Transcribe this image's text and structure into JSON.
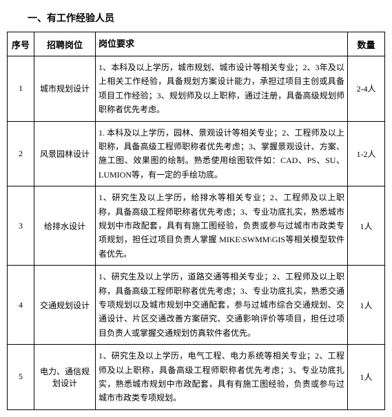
{
  "title": "一、有工作经验人员",
  "headers": {
    "index": "序号",
    "position": "招聘岗位",
    "requirement": "岗位要求",
    "quantity": "数量"
  },
  "rows": [
    {
      "index": "1",
      "position": "城市规划设计",
      "requirement": "1、本科及以上学历，城市规划、城市设计等相关专业；2、3年及以上相关工作经验，具备规划方案设计能力，承担过项目主创或具备项目工作经验；3、规划师及以上职称，通过注册，具备高级规划师职称者优先考虑。",
      "quantity": "2-4人"
    },
    {
      "index": "2",
      "position": "风景园林设计",
      "requirement": "1. 本科及以上学历，园林、景观设计等相关专业；2、工程师及以上职称，具备高级工程师职称者优先考虑；3、掌握景观设计、方案、施工图、效果图的绘制。熟悉使用绘图软件如：CAD、PS、SU、LUMION等，有一定的手绘功底。",
      "quantity": "1-2人"
    },
    {
      "index": "3",
      "position": "给排水设计",
      "requirement": "1、研究生及以上学历，给排水等相关专业；2、工程师及以上职称，具备高级工程师职称者优先考虑；3、专业功底扎实，熟悉城市规划中市政配套，具有有施工图经验，负责或参与过城市市政类专项规划，担任过项目负责人掌握 MIKE\\SWMM\\GIS等相关模型软件者优先。",
      "quantity": "1人"
    },
    {
      "index": "4",
      "position": "交通规划设计",
      "requirement": "1、研究生及以上学历，道路交通等相关专业；2、工程师及以上职称，具备高级工程师职称者优先考虑；3、专业功底扎实，熟悉交通专项规划以及城市规划中交通配套，参与过城市综合交通规划、交通设计、片区交通改善方案研究、交通影响评价等项目，担任过项目负责人或掌握交通规划仿真软件者优先。",
      "quantity": "1人"
    },
    {
      "index": "5",
      "position": "电力、通信规划设计",
      "requirement": "1、研究生及以上学历，电气工程、电力系统等相关专业；2、工程师及以上职称，具备高级工程师职称者优先考虑；3、专业功底扎实，熟悉城市规划中市政配套，具有有施工图经验，负责或参与过城市市政类专项规划。",
      "quantity": "1人"
    }
  ]
}
